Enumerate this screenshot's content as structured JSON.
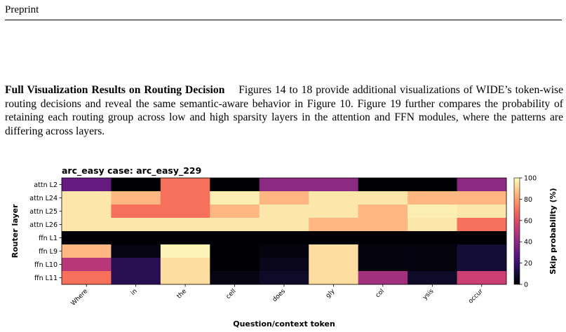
{
  "page": {
    "running_header": "Preprint"
  },
  "paragraph": {
    "heading": "Full Visualization Results on Routing Decision",
    "body": "Figures 14 to 18 provide additional visualizations of WIDE’s token-wise routing decisions and reveal the same semantic-aware behavior in Figure 10. Figure 19 further compares the probability of retaining each routing group across low and high sparsity layers in the attention and FFN modules, where the patterns are differing across layers."
  },
  "chart_data": {
    "type": "heatmap",
    "title": "arc_easy case: arc_easy_229",
    "xlabel": "Question/context token",
    "ylabel": "Router layer",
    "colorbar_label": "Skip probability (%)",
    "colormap": "magma",
    "vmin": 0,
    "vmax": 100,
    "colorbar_ticks": [
      0,
      20,
      40,
      60,
      80,
      100
    ],
    "x": [
      "Where",
      "in",
      "the",
      "cell",
      "does",
      "gly",
      "col",
      "ysis",
      "occur"
    ],
    "y": [
      "attn L2",
      "attn L24",
      "attn L25",
      "attn L26",
      "ffn L1",
      "ffn L9",
      "ffn L10",
      "ffn L11"
    ],
    "values": [
      [
        30,
        0,
        70,
        0,
        40,
        40,
        0,
        0,
        40
      ],
      [
        95,
        85,
        70,
        97,
        85,
        95,
        95,
        85,
        85
      ],
      [
        95,
        70,
        70,
        85,
        95,
        95,
        85,
        97,
        95
      ],
      [
        95,
        95,
        95,
        95,
        95,
        85,
        85,
        95,
        70
      ],
      [
        0,
        0,
        0,
        0,
        0,
        0,
        0,
        0,
        0
      ],
      [
        85,
        3,
        98,
        0,
        2,
        93,
        2,
        2,
        10
      ],
      [
        50,
        15,
        93,
        0,
        5,
        93,
        2,
        2,
        10
      ],
      [
        70,
        15,
        93,
        3,
        7,
        93,
        45,
        7,
        55
      ]
    ]
  }
}
